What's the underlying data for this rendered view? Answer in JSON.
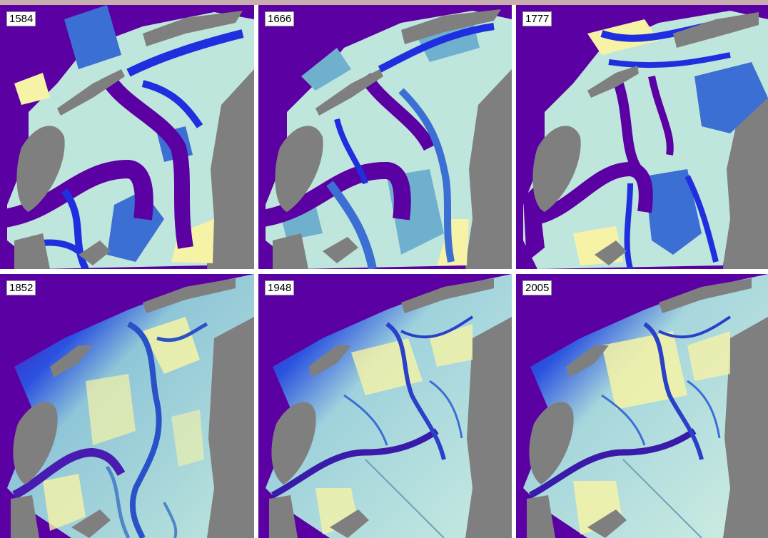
{
  "panels": [
    {
      "year": "1584",
      "style": "classified"
    },
    {
      "year": "1666",
      "style": "classified"
    },
    {
      "year": "1777",
      "style": "classified"
    },
    {
      "year": "1852",
      "style": "continuous"
    },
    {
      "year": "1948",
      "style": "continuous"
    },
    {
      "year": "2005",
      "style": "continuous"
    }
  ],
  "colors": {
    "deep_water": "#5b00a3",
    "channel_blue": "#1f2fe0",
    "mid_blue": "#3b6fd4",
    "shallow_teal": "#6fb0cf",
    "flat_pale": "#bfe6dc",
    "intertidal_yellow": "#f6f3a6",
    "land_grey": "#7f7f7f",
    "header_bar": "#c8aeae"
  }
}
